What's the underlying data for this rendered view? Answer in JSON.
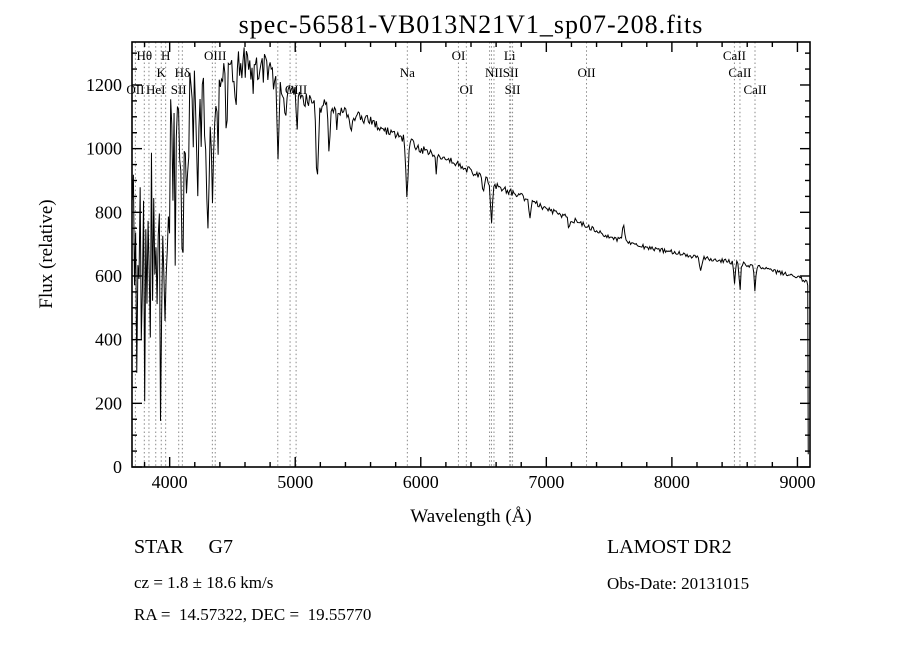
{
  "chart_data": {
    "type": "line",
    "title": "spec-56581-VB013N21V1_sp07-208.fits",
    "xlabel": "Wavelength (Å)",
    "ylabel": "Flux (relative)",
    "xlim": [
      3700,
      9100
    ],
    "ylim": [
      0,
      1335
    ],
    "xticks": [
      4000,
      5000,
      6000,
      7000,
      8000,
      9000
    ],
    "yticks": [
      0,
      200,
      400,
      600,
      800,
      1000,
      1200
    ],
    "x_minor_step": 200,
    "y_minor_step": 50,
    "grid": false,
    "legend": "none",
    "line_color": "#000000",
    "marker_line_color": "#8a8a8a",
    "line_markers": [
      {
        "label": "OII",
        "wavelength": 3727,
        "row": 3
      },
      {
        "label": "Hθ",
        "wavelength": 3798,
        "row": 1
      },
      {
        "label": "",
        "wavelength": 3835,
        "row": 0
      },
      {
        "label": "HeI",
        "wavelength": 3889,
        "row": 3
      },
      {
        "label": "K",
        "wavelength": 3933,
        "row": 2
      },
      {
        "label": "H",
        "wavelength": 3968,
        "row": 1
      },
      {
        "label": "SII",
        "wavelength": 4072,
        "row": 3
      },
      {
        "label": "Hδ",
        "wavelength": 4101,
        "row": 2
      },
      {
        "label": "",
        "wavelength": 4340,
        "row": 0
      },
      {
        "label": "OIII",
        "wavelength": 4363,
        "row": 1
      },
      {
        "label": "",
        "wavelength": 4861,
        "row": 0
      },
      {
        "label": "",
        "wavelength": 4959,
        "row": 0
      },
      {
        "label": "OIII",
        "wavelength": 5007,
        "row": 3
      },
      {
        "label": "Na",
        "wavelength": 5893,
        "row": 2
      },
      {
        "label": "OI",
        "wavelength": 6300,
        "row": 1
      },
      {
        "label": "OI",
        "wavelength": 6363,
        "row": 3
      },
      {
        "label": "",
        "wavelength": 6548,
        "row": 0
      },
      {
        "label": "",
        "wavelength": 6563,
        "row": 0
      },
      {
        "label": "NII",
        "wavelength": 6583,
        "row": 2
      },
      {
        "label": "Li",
        "wavelength": 6708,
        "row": 1
      },
      {
        "label": "SII",
        "wavelength": 6716,
        "row": 2
      },
      {
        "label": "SII",
        "wavelength": 6731,
        "row": 3
      },
      {
        "label": "OII",
        "wavelength": 7320,
        "row": 2
      },
      {
        "label": "CaII",
        "wavelength": 8498,
        "row": 1
      },
      {
        "label": "CaII",
        "wavelength": 8542,
        "row": 2
      },
      {
        "label": "CaII",
        "wavelength": 8662,
        "row": 3
      }
    ],
    "spectrum": {
      "range": [
        3702,
        9078
      ],
      "step": 9,
      "continuum": [
        [
          3700,
          620
        ],
        [
          3760,
          640
        ],
        [
          3820,
          660
        ],
        [
          3880,
          760
        ],
        [
          3940,
          840
        ],
        [
          4000,
          950
        ],
        [
          4060,
          1000
        ],
        [
          4120,
          1045
        ],
        [
          4180,
          1095
        ],
        [
          4240,
          1125
        ],
        [
          4300,
          1135
        ],
        [
          4360,
          1165
        ],
        [
          4420,
          1195
        ],
        [
          4480,
          1225
        ],
        [
          4540,
          1245
        ],
        [
          4600,
          1262
        ],
        [
          4660,
          1270
        ],
        [
          4720,
          1263
        ],
        [
          4780,
          1248
        ],
        [
          4840,
          1222
        ],
        [
          4900,
          1192
        ],
        [
          4960,
          1175
        ],
        [
          5020,
          1162
        ],
        [
          5100,
          1150
        ],
        [
          5200,
          1136
        ],
        [
          5300,
          1130
        ],
        [
          5400,
          1116
        ],
        [
          5500,
          1100
        ],
        [
          5600,
          1084
        ],
        [
          5700,
          1064
        ],
        [
          5800,
          1044
        ],
        [
          5900,
          1022
        ],
        [
          6000,
          1000
        ],
        [
          6100,
          985
        ],
        [
          6200,
          968
        ],
        [
          6300,
          950
        ],
        [
          6400,
          930
        ],
        [
          6500,
          906
        ],
        [
          6600,
          882
        ],
        [
          6700,
          866
        ],
        [
          6800,
          850
        ],
        [
          6900,
          830
        ],
        [
          7000,
          812
        ],
        [
          7100,
          795
        ],
        [
          7200,
          778
        ],
        [
          7300,
          760
        ],
        [
          7400,
          742
        ],
        [
          7500,
          725
        ],
        [
          7600,
          712
        ],
        [
          7700,
          700
        ],
        [
          7800,
          690
        ],
        [
          7900,
          682
        ],
        [
          8000,
          675
        ],
        [
          8100,
          667
        ],
        [
          8200,
          660
        ],
        [
          8300,
          653
        ],
        [
          8400,
          648
        ],
        [
          8500,
          642
        ],
        [
          8600,
          635
        ],
        [
          8700,
          627
        ],
        [
          8800,
          617
        ],
        [
          8900,
          606
        ],
        [
          9000,
          595
        ],
        [
          9080,
          585
        ]
      ],
      "noise": [
        [
          3700,
          440
        ],
        [
          3780,
          440
        ],
        [
          3860,
          360
        ],
        [
          3920,
          290
        ],
        [
          3980,
          250
        ],
        [
          4040,
          220
        ],
        [
          4120,
          185
        ],
        [
          4200,
          150
        ],
        [
          4280,
          120
        ],
        [
          4360,
          100
        ],
        [
          4440,
          80
        ],
        [
          4540,
          62
        ],
        [
          4660,
          55
        ],
        [
          4800,
          46
        ],
        [
          4900,
          36
        ],
        [
          5000,
          28
        ],
        [
          5200,
          22
        ],
        [
          5400,
          20
        ],
        [
          5600,
          17
        ],
        [
          5800,
          15
        ],
        [
          6000,
          14
        ],
        [
          6300,
          12
        ],
        [
          6600,
          10
        ],
        [
          7000,
          9
        ],
        [
          7400,
          8
        ],
        [
          7800,
          7
        ],
        [
          8400,
          7
        ],
        [
          9080,
          7
        ]
      ],
      "features": [
        {
          "center": 3770,
          "depth": 250,
          "width": 7
        },
        {
          "center": 3798,
          "depth": 280,
          "width": 7
        },
        {
          "center": 3835,
          "depth": 300,
          "width": 7
        },
        {
          "center": 3889,
          "depth": 360,
          "width": 8
        },
        {
          "center": 3933,
          "depth": 520,
          "width": 9
        },
        {
          "center": 3968,
          "depth": 460,
          "width": 9
        },
        {
          "center": 4045,
          "depth": 180,
          "width": 6
        },
        {
          "center": 4101,
          "depth": 390,
          "width": 9
        },
        {
          "center": 4144,
          "depth": 150,
          "width": 6
        },
        {
          "center": 4227,
          "depth": 230,
          "width": 6
        },
        {
          "center": 4305,
          "depth": 430,
          "width": 11
        },
        {
          "center": 4340,
          "depth": 300,
          "width": 8
        },
        {
          "center": 4383,
          "depth": 190,
          "width": 7
        },
        {
          "center": 4455,
          "depth": 120,
          "width": 6
        },
        {
          "center": 4531,
          "depth": 100,
          "width": 6
        },
        {
          "center": 4668,
          "depth": 90,
          "width": 6
        },
        {
          "center": 4861,
          "depth": 240,
          "width": 8
        },
        {
          "center": 4920,
          "depth": 90,
          "width": 6
        },
        {
          "center": 5015,
          "depth": 80,
          "width": 6
        },
        {
          "center": 5175,
          "depth": 230,
          "width": 10
        },
        {
          "center": 5270,
          "depth": 130,
          "width": 8
        },
        {
          "center": 5332,
          "depth": 70,
          "width": 6
        },
        {
          "center": 5445,
          "depth": 60,
          "width": 6
        },
        {
          "center": 5890,
          "depth": 170,
          "width": 8
        },
        {
          "center": 6122,
          "depth": 50,
          "width": 6
        },
        {
          "center": 6497,
          "depth": 50,
          "width": 6
        },
        {
          "center": 6563,
          "depth": 130,
          "width": 7
        },
        {
          "center": 6870,
          "depth": 50,
          "width": 7
        },
        {
          "center": 7180,
          "depth": 30,
          "width": 7
        },
        {
          "center": 7615,
          "depth": -55,
          "width": 9
        },
        {
          "center": 8230,
          "depth": 35,
          "width": 9
        },
        {
          "center": 8498,
          "depth": 60,
          "width": 6
        },
        {
          "center": 8542,
          "depth": 85,
          "width": 6
        },
        {
          "center": 8662,
          "depth": 75,
          "width": 6
        }
      ],
      "tail": [
        [
          9082,
          570
        ],
        [
          9086,
          40
        ]
      ]
    }
  },
  "footer": {
    "class_label": "STAR     G7",
    "survey": "LAMOST DR2",
    "cz": "cz = 1.8 ± 18.6 km/s",
    "obs_date": "Obs-Date: 20131015",
    "coords": "RA =  14.57322, DEC =  19.55770"
  }
}
